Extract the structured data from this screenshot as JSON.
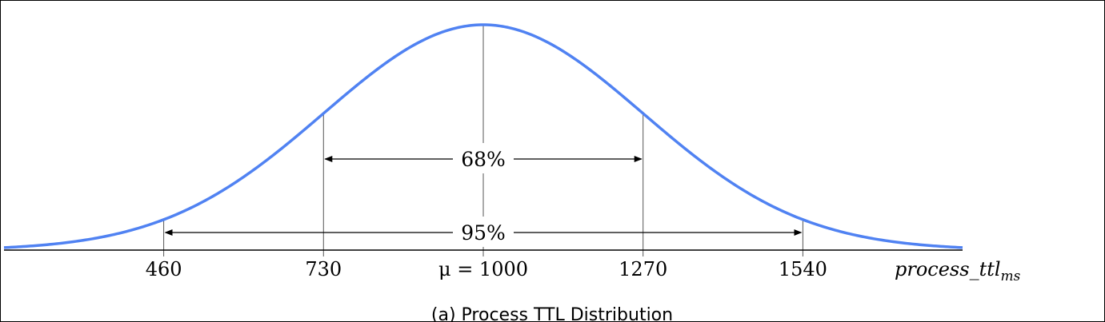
{
  "chart_data": {
    "type": "area",
    "distribution": "normal",
    "mean": 1000,
    "std_dev": 270,
    "x_range": [
      -200,
      2200
    ],
    "x_ticks": [
      {
        "value": 460,
        "label": "460"
      },
      {
        "value": 730,
        "label": "730"
      },
      {
        "value": 1000,
        "label": "μ = 1000"
      },
      {
        "value": 1270,
        "label": "1270"
      },
      {
        "value": 1540,
        "label": "1540"
      }
    ],
    "xlabel_main": "process_ttl",
    "xlabel_sub": "ms",
    "intervals": [
      {
        "label": "68%",
        "from": 730,
        "to": 1270
      },
      {
        "label": "95%",
        "from": 460,
        "to": 1540
      }
    ],
    "grid": false,
    "curve_color": "#5082f2",
    "caption": "(a) Process TTL Distribution"
  }
}
